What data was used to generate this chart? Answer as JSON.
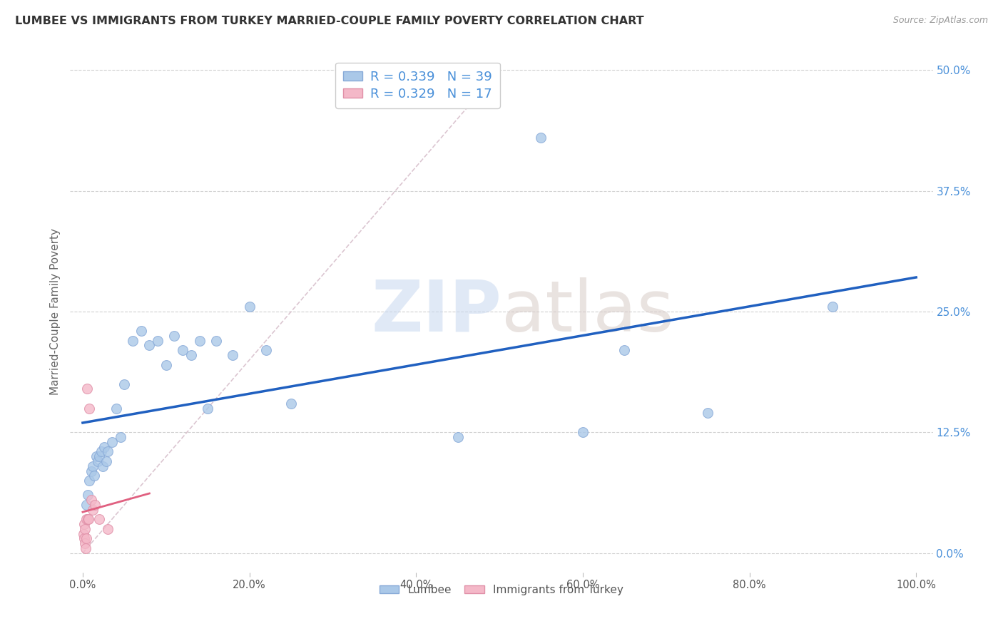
{
  "title": "LUMBEE VS IMMIGRANTS FROM TURKEY MARRIED-COUPLE FAMILY POVERTY CORRELATION CHART",
  "source": "Source: ZipAtlas.com",
  "ylabel_label": "Married-Couple Family Poverty",
  "legend_label1": "Lumbee",
  "legend_label2": "Immigrants from Turkey",
  "R1": 0.339,
  "N1": 39,
  "R2": 0.329,
  "N2": 17,
  "lumbee_color": "#aac8e8",
  "lumbee_edge": "#88aad8",
  "turkey_color": "#f4b8c8",
  "turkey_edge": "#e090a8",
  "trend_blue": "#2060c0",
  "trend_pink": "#e06080",
  "diag_color": "#d8c0cc",
  "grid_color": "#d0d0d0",
  "right_tick_color": "#4a90d9",
  "lumbee_x": [
    0.4,
    0.6,
    0.8,
    1.0,
    1.2,
    1.4,
    1.6,
    1.8,
    2.0,
    2.2,
    2.4,
    2.6,
    2.8,
    3.0,
    3.5,
    4.0,
    4.5,
    5.0,
    6.0,
    7.0,
    8.0,
    9.0,
    10.0,
    11.0,
    12.0,
    13.0,
    14.0,
    15.0,
    16.0,
    18.0,
    20.0,
    22.0,
    25.0,
    45.0,
    55.0,
    60.0,
    65.0,
    75.0,
    90.0
  ],
  "lumbee_y": [
    5.0,
    6.0,
    7.5,
    8.5,
    9.0,
    8.0,
    10.0,
    9.5,
    10.0,
    10.5,
    9.0,
    11.0,
    9.5,
    10.5,
    11.5,
    15.0,
    12.0,
    17.5,
    22.0,
    23.0,
    21.5,
    22.0,
    19.5,
    22.5,
    21.0,
    20.5,
    22.0,
    15.0,
    22.0,
    20.5,
    25.5,
    21.0,
    15.5,
    12.0,
    43.0,
    12.5,
    21.0,
    14.5,
    25.5
  ],
  "turkey_x": [
    0.1,
    0.15,
    0.2,
    0.25,
    0.3,
    0.35,
    0.4,
    0.45,
    0.5,
    0.6,
    0.7,
    0.8,
    1.0,
    1.2,
    1.5,
    2.0,
    3.0
  ],
  "turkey_y": [
    2.0,
    1.5,
    3.0,
    1.0,
    2.5,
    0.5,
    3.5,
    1.5,
    17.0,
    3.5,
    3.5,
    15.0,
    5.5,
    4.5,
    5.0,
    3.5,
    2.5
  ],
  "xlim": [
    0,
    100
  ],
  "ylim": [
    0,
    50
  ],
  "xticks": [
    0,
    20,
    40,
    60,
    80,
    100
  ],
  "yticks": [
    0,
    12.5,
    25.0,
    37.5,
    50.0
  ],
  "xtick_labels": [
    "0.0%",
    "20.0%",
    "40.0%",
    "60.0%",
    "80.0%",
    "100.0%"
  ],
  "ytick_labels": [
    "0.0%",
    "12.5%",
    "25.0%",
    "37.5%",
    "50.0%"
  ]
}
